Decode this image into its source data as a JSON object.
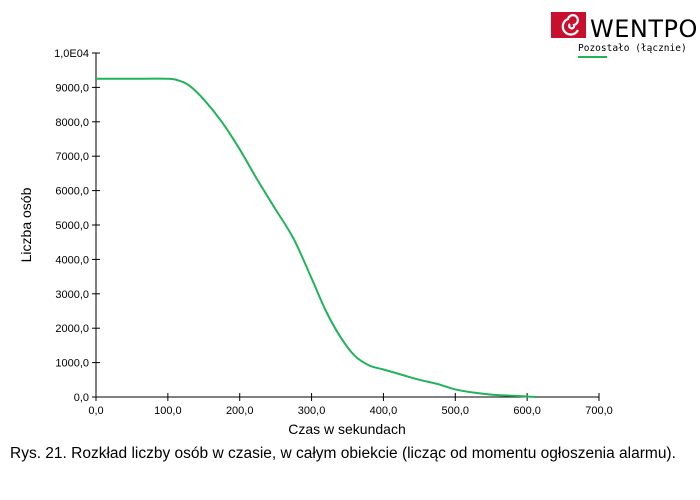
{
  "logo": {
    "text": "WENTPO",
    "colors": {
      "mark": "#c8102e",
      "text": "#000000"
    }
  },
  "caption": "Rys. 21.  Rozkład liczby osób w czasie, w całym obiekcie (licząc od momentu ogłoszenia alarmu).",
  "chart_data": {
    "type": "line",
    "xlabel": "Czas w sekundach",
    "ylabel": "Liczba osób",
    "xlim": [
      0,
      700
    ],
    "ylim": [
      0,
      10000
    ],
    "x_ticks": [
      0,
      100,
      200,
      300,
      400,
      500,
      600,
      700
    ],
    "y_ticks": [
      0,
      1000,
      2000,
      3000,
      4000,
      5000,
      6000,
      7000,
      8000,
      9000,
      10000
    ],
    "x_tick_labels": [
      "0,0",
      "100,0",
      "200,0",
      "300,0",
      "400,0",
      "500,0",
      "600,0",
      "700,0"
    ],
    "y_tick_labels": [
      "0,0",
      "1000,0",
      "2000,0",
      "3000,0",
      "4000,0",
      "5000,0",
      "6000,0",
      "7000,0",
      "8000,0",
      "9000,0",
      "1,0E04"
    ],
    "grid": false,
    "legend_position": "top-right",
    "series": [
      {
        "name": "Pozostało (łącznie)",
        "color": "#22b35a",
        "x": [
          0,
          50,
          100,
          115,
          130,
          150,
          175,
          200,
          225,
          250,
          275,
          300,
          320,
          340,
          360,
          380,
          400,
          425,
          450,
          475,
          500,
          525,
          550,
          575,
          600,
          612
        ],
        "y": [
          9250,
          9250,
          9250,
          9200,
          9050,
          8650,
          8000,
          7200,
          6300,
          5450,
          4600,
          3450,
          2500,
          1750,
          1200,
          920,
          800,
          650,
          500,
          380,
          220,
          130,
          70,
          40,
          15,
          0
        ]
      }
    ]
  }
}
